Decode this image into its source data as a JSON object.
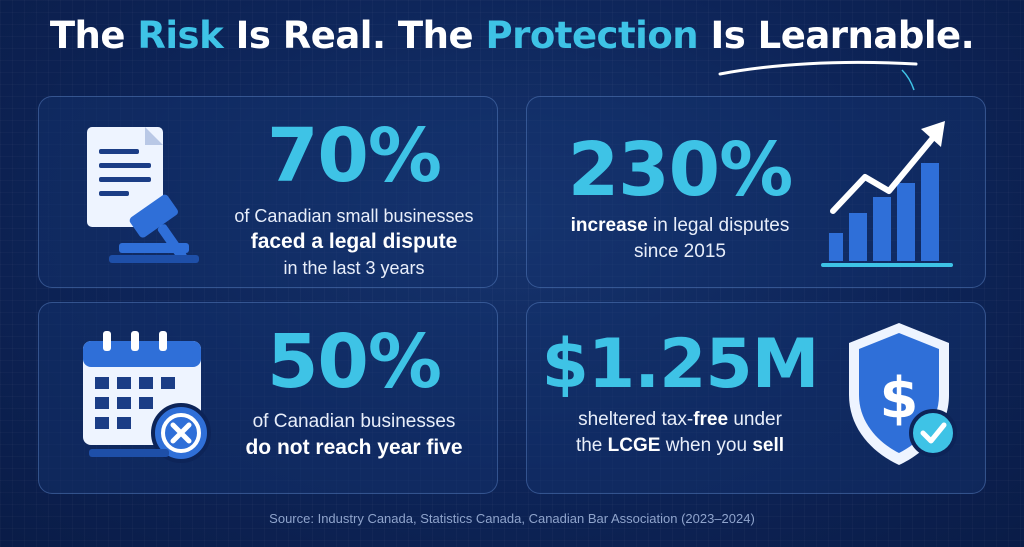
{
  "headline": {
    "part1": "The ",
    "accent1": "Risk",
    "part2": " Is Real. The ",
    "accent2": "Protection",
    "part3": " Is Learnable."
  },
  "cards": [
    {
      "stat": "70%",
      "line1": "of Canadian small businesses",
      "line2_bold": "faced a legal dispute",
      "line3": "in the last 3 years",
      "icon": "document-gavel-icon"
    },
    {
      "stat": "230%",
      "line1_bold": "increase",
      "line1_rest": " in legal disputes",
      "line2": "since 2015",
      "icon": "growth-chart-icon"
    },
    {
      "stat": "50%",
      "line1": "of Canadian businesses",
      "line2_bold": "do not reach year five",
      "icon": "calendar-x-icon"
    },
    {
      "stat": "$1.25M",
      "line1_a": "sheltered tax-",
      "line1_bold": "free",
      "line1_b": " under",
      "line2_a": "the ",
      "line2_bold1": "LCGE",
      "line2_b": " when you ",
      "line2_bold2": "sell",
      "icon": "shield-dollar-check-icon"
    }
  ],
  "source": "Source: Industry Canada, Statistics Canada, Canadian Bar Association (2023–2024)",
  "colors": {
    "background": "#0d2458",
    "accent": "#3ec3e6",
    "text": "#ffffff"
  }
}
